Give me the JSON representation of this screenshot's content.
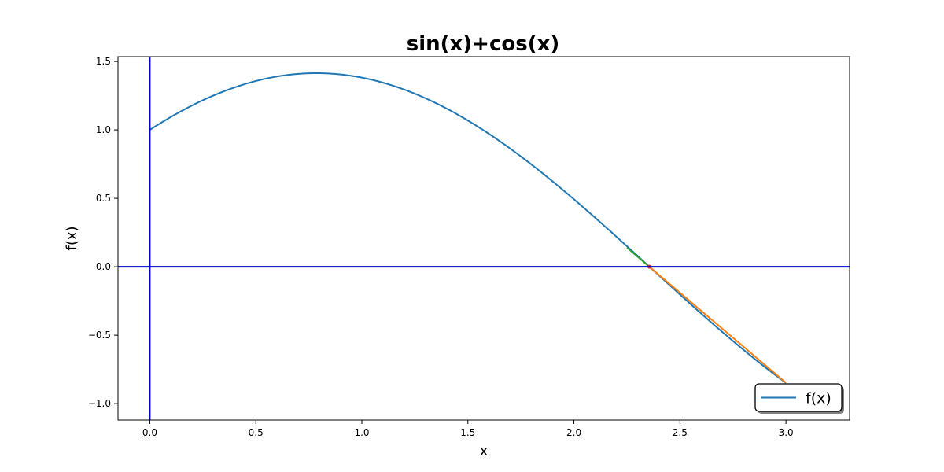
{
  "chart_data": {
    "type": "line",
    "title": "sin(x)+cos(x)",
    "xlabel": "x",
    "ylabel": "f(x)",
    "xlim": [
      -0.15,
      3.3
    ],
    "ylim": [
      -1.12,
      1.535
    ],
    "xticks": [
      0.0,
      0.5,
      1.0,
      1.5,
      2.0,
      2.5,
      3.0
    ],
    "xtick_labels": [
      "0.0",
      "0.5",
      "1.0",
      "1.5",
      "2.0",
      "2.5",
      "3.0"
    ],
    "yticks": [
      -1.0,
      -0.5,
      0.0,
      0.5,
      1.0,
      1.5
    ],
    "ytick_labels": [
      "−1.0",
      "−0.5",
      "0.0",
      "0.5",
      "1.0",
      "1.5"
    ],
    "grid": false,
    "legend_position": "lower-right",
    "series": [
      {
        "name": "f(x)",
        "function": "sin(x)+cos(x)",
        "x_range": [
          0.0,
          3.0
        ],
        "color": "#1f77b4"
      }
    ],
    "annotations": [
      {
        "kind": "segment",
        "color": "#2ca02c",
        "x": [
          2.25,
          2.356
        ],
        "y": [
          0.1397,
          0.0
        ]
      },
      {
        "kind": "segment",
        "color": "#ff7f0e",
        "x": [
          2.356,
          3.0
        ],
        "y": [
          0.0,
          -0.848
        ]
      },
      {
        "kind": "point",
        "color": "#d62728",
        "x": 2.356,
        "y": 0.0
      },
      {
        "kind": "vertical-line",
        "color": "#0000cc",
        "x": 0.0
      },
      {
        "kind": "horizontal-line",
        "color": "#0000cc",
        "y": 0.0
      }
    ]
  }
}
